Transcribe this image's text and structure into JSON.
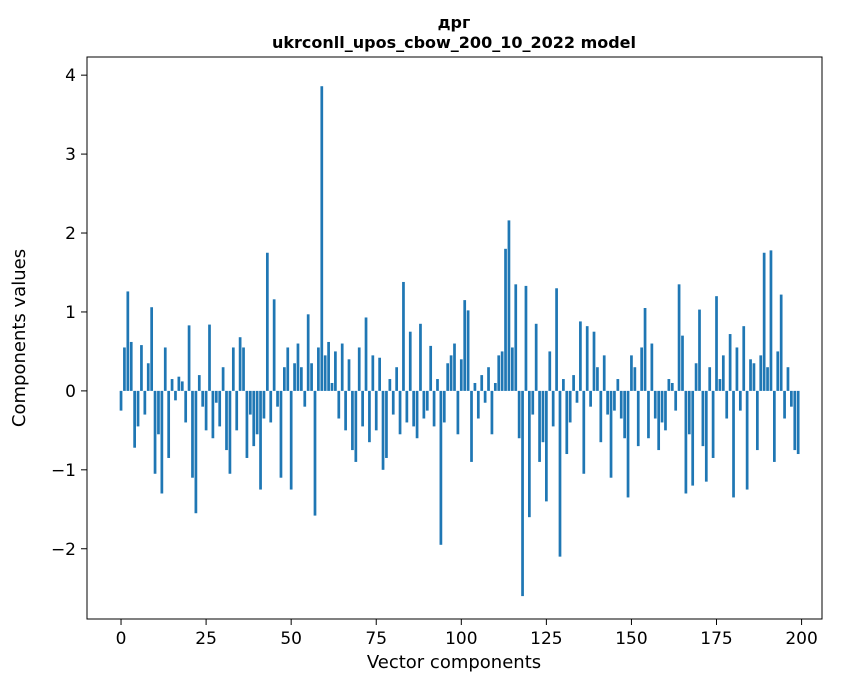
{
  "chart_data": {
    "type": "bar",
    "title": "дрг",
    "subtitle": "ukrconll_upos_cbow_200_10_2022 model",
    "xlabel": "Vector components",
    "ylabel": "Components values",
    "xlim": [
      -10,
      206
    ],
    "ylim": [
      -2.89,
      4.23
    ],
    "xticks": [
      0,
      25,
      50,
      75,
      100,
      125,
      150,
      175,
      200
    ],
    "yticks": [
      -2,
      -1,
      0,
      1,
      2,
      3,
      4
    ],
    "bar_color": "#1f77b4",
    "legend": "none",
    "grid": false,
    "values": [
      -0.25,
      0.55,
      1.26,
      0.62,
      -0.72,
      -0.45,
      0.58,
      -0.3,
      0.35,
      1.06,
      -1.05,
      -0.55,
      -1.3,
      0.55,
      -0.85,
      0.15,
      -0.12,
      0.18,
      0.12,
      -0.4,
      0.83,
      -1.1,
      -1.55,
      0.2,
      -0.2,
      -0.5,
      0.84,
      -0.6,
      -0.15,
      -0.45,
      0.3,
      -0.75,
      -1.05,
      0.55,
      -0.5,
      0.68,
      0.55,
      -0.85,
      -0.3,
      -0.7,
      -0.55,
      -1.25,
      -0.35,
      1.75,
      -0.4,
      1.16,
      -0.2,
      -1.1,
      0.3,
      0.55,
      -1.25,
      0.35,
      0.6,
      0.3,
      -0.2,
      0.97,
      0.35,
      -1.58,
      0.55,
      3.86,
      0.45,
      0.62,
      0.1,
      0.5,
      -0.35,
      0.6,
      -0.5,
      0.4,
      -0.75,
      -0.9,
      0.55,
      -0.45,
      0.93,
      -0.65,
      0.45,
      -0.5,
      0.42,
      -1.0,
      -0.85,
      0.15,
      -0.3,
      0.3,
      -0.55,
      1.38,
      -0.4,
      0.75,
      -0.45,
      -0.6,
      0.85,
      -0.35,
      -0.25,
      0.57,
      -0.45,
      0.15,
      -1.95,
      -0.4,
      0.35,
      0.45,
      0.6,
      -0.55,
      0.4,
      1.15,
      1.02,
      -0.9,
      0.1,
      -0.35,
      0.2,
      -0.15,
      0.3,
      -0.55,
      0.1,
      0.45,
      0.5,
      1.8,
      2.16,
      0.55,
      1.35,
      -0.6,
      -2.6,
      1.33,
      -1.6,
      -0.3,
      0.85,
      -0.9,
      -0.65,
      -1.4,
      0.5,
      -0.45,
      1.3,
      -2.1,
      0.15,
      -0.8,
      -0.4,
      0.2,
      -0.15,
      0.88,
      -1.05,
      0.82,
      -0.2,
      0.75,
      0.3,
      -0.65,
      0.45,
      -0.3,
      -1.1,
      -0.25,
      0.15,
      -0.35,
      -0.6,
      -1.35,
      0.45,
      0.3,
      -0.7,
      0.55,
      1.05,
      -0.6,
      0.6,
      -0.35,
      -0.75,
      -0.4,
      -0.5,
      0.15,
      0.1,
      -0.25,
      1.35,
      0.7,
      -1.3,
      -0.55,
      -1.2,
      0.35,
      1.03,
      -0.7,
      -1.15,
      0.3,
      -0.85,
      1.2,
      0.15,
      0.45,
      -0.35,
      0.72,
      -1.35,
      0.55,
      -0.25,
      0.82,
      -1.25,
      0.4,
      0.35,
      -0.75,
      0.45,
      1.75,
      0.3,
      1.78,
      -0.9,
      0.5,
      1.22,
      -0.35,
      0.3,
      -0.2,
      -0.75,
      -0.8
    ]
  }
}
